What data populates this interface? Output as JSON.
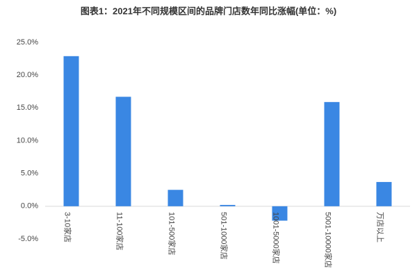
{
  "chart_data": {
    "type": "bar",
    "title": "图表1：2021年不同规模区间的品牌门店数年同比涨幅(单位：%)",
    "categories": [
      "3-10家店",
      "11-100家店",
      "101-500家店",
      "501-1000家店",
      "1001-5000家店",
      "5001-10000家店",
      "万店以上"
    ],
    "values": [
      22.9,
      16.7,
      2.5,
      0.2,
      -2.2,
      15.9,
      3.7
    ],
    "color": "#3a87e3",
    "ylim": [
      -5,
      25
    ],
    "yticks": [
      {
        "value": -5,
        "label": "-5.0%"
      },
      {
        "value": 0,
        "label": "0.0%"
      },
      {
        "value": 5,
        "label": "5.0%"
      },
      {
        "value": 10,
        "label": "10.0%"
      },
      {
        "value": 15,
        "label": "15.0%"
      },
      {
        "value": 20,
        "label": "20.0%"
      },
      {
        "value": 25,
        "label": "25.0%"
      }
    ],
    "grid": false
  }
}
